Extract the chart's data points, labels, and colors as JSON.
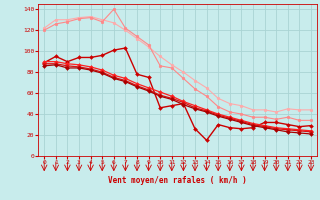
{
  "xlabel": "Vent moyen/en rafales ( km/h )",
  "background_color": "#c8ecec",
  "grid_color": "#aad4d4",
  "xlim": [
    -0.5,
    23.5
  ],
  "ylim": [
    0,
    145
  ],
  "yticks": [
    0,
    20,
    40,
    60,
    80,
    100,
    120,
    140
  ],
  "xticks": [
    0,
    1,
    2,
    3,
    4,
    5,
    6,
    7,
    8,
    9,
    10,
    11,
    12,
    13,
    14,
    15,
    16,
    17,
    18,
    19,
    20,
    21,
    22,
    23
  ],
  "lines": [
    {
      "x": [
        0,
        1,
        2,
        3,
        4,
        5,
        6,
        7,
        8,
        9,
        10,
        11,
        12,
        13,
        14,
        15,
        16,
        17,
        18,
        19,
        20,
        21,
        22,
        23
      ],
      "y": [
        122,
        130,
        130,
        132,
        133,
        130,
        127,
        120,
        112,
        104,
        95,
        87,
        80,
        72,
        65,
        55,
        50,
        48,
        44,
        44,
        42,
        45,
        44,
        44
      ],
      "color": "#ffaaaa",
      "lw": 0.8,
      "marker": "o",
      "ms": 2.0
    },
    {
      "x": [
        0,
        1,
        2,
        3,
        4,
        5,
        6,
        7,
        8,
        9,
        10,
        11,
        12,
        13,
        14,
        15,
        16,
        17,
        18,
        19,
        20,
        21,
        22,
        23
      ],
      "y": [
        120,
        126,
        128,
        131,
        132,
        128,
        140,
        122,
        114,
        106,
        86,
        84,
        74,
        64,
        57,
        47,
        42,
        40,
        37,
        37,
        35,
        37,
        34,
        34
      ],
      "color": "#ff8888",
      "lw": 0.8,
      "marker": "o",
      "ms": 2.0
    },
    {
      "x": [
        0,
        1,
        2,
        3,
        4,
        5,
        6,
        7,
        8,
        9,
        10,
        11,
        12,
        13,
        14,
        15,
        16,
        17,
        18,
        19,
        20,
        21,
        22,
        23
      ],
      "y": [
        89,
        95,
        90,
        94,
        94,
        96,
        101,
        103,
        78,
        75,
        46,
        48,
        50,
        26,
        15,
        30,
        27,
        26,
        27,
        32,
        32,
        30,
        28,
        29
      ],
      "color": "#cc0000",
      "lw": 1.0,
      "marker": "D",
      "ms": 2.0
    },
    {
      "x": [
        0,
        1,
        2,
        3,
        4,
        5,
        6,
        7,
        8,
        9,
        10,
        11,
        12,
        13,
        14,
        15,
        16,
        17,
        18,
        19,
        20,
        21,
        22,
        23
      ],
      "y": [
        90,
        90,
        88,
        87,
        85,
        82,
        77,
        74,
        69,
        65,
        61,
        57,
        52,
        48,
        44,
        40,
        37,
        34,
        31,
        29,
        27,
        26,
        25,
        24
      ],
      "color": "#ff2222",
      "lw": 0.9,
      "marker": "D",
      "ms": 2.0
    },
    {
      "x": [
        0,
        1,
        2,
        3,
        4,
        5,
        6,
        7,
        8,
        9,
        10,
        11,
        12,
        13,
        14,
        15,
        16,
        17,
        18,
        19,
        20,
        21,
        22,
        23
      ],
      "y": [
        88,
        88,
        86,
        85,
        83,
        80,
        75,
        72,
        67,
        63,
        58,
        55,
        51,
        46,
        43,
        39,
        36,
        33,
        30,
        28,
        26,
        25,
        24,
        23
      ],
      "color": "#dd1111",
      "lw": 0.9,
      "marker": "D",
      "ms": 2.0
    },
    {
      "x": [
        0,
        1,
        2,
        3,
        4,
        5,
        6,
        7,
        8,
        9,
        10,
        11,
        12,
        13,
        14,
        15,
        16,
        17,
        18,
        19,
        20,
        21,
        22,
        23
      ],
      "y": [
        86,
        87,
        84,
        84,
        82,
        79,
        74,
        71,
        66,
        62,
        57,
        54,
        49,
        45,
        42,
        38,
        35,
        32,
        29,
        27,
        25,
        23,
        22,
        21
      ],
      "color": "#aa0000",
      "lw": 0.9,
      "marker": "D",
      "ms": 2.0
    }
  ],
  "tick_color": "#cc0000",
  "xlabel_color": "#cc0000",
  "xlabel_fontsize": 5.5,
  "tick_fontsize": 4.5
}
